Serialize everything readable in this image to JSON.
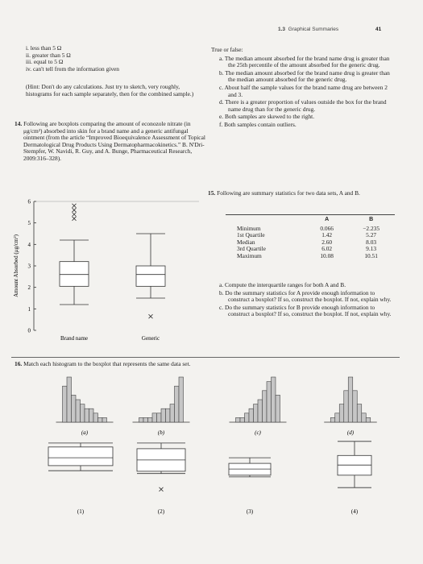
{
  "header": {
    "section_number": "1.3",
    "section_title": "Graphical Summaries",
    "page_number": "41"
  },
  "options": [
    "i. less than 5 Ω",
    "ii. greater than 5 Ω",
    "iii. equal to 5 Ω",
    "iv. can't tell from the information given"
  ],
  "hint": "(Hint: Don't do any calculations. Just try to sketch, very roughly, histograms for each sample separately, then for the combined sample.)",
  "problem14": {
    "number": "14.",
    "text": "Following are boxplots comparing the amount of econozole nitrate (in μg/cm²) absorbed into skin for a brand name and a generic antifungal ointment (from the article “Improved Bioequivalence Assessment of Topical Dermatological Drug Products Using Dermatopharmacokinetics.” B. N'Dri-Stempfer, W. Navidi, R. Guy, and A. Bunge, Pharmaceutical Research, 2009:316–328).",
    "figure": {
      "y_axis_label": "Amount Absorbed (μg/cm²)",
      "ylim": [
        0,
        6
      ],
      "yticks": [
        0,
        1,
        2,
        3,
        4,
        5,
        6
      ],
      "categories": [
        "Brand name",
        "Generic"
      ],
      "boxes": [
        {
          "min": 1.2,
          "q1": 2.05,
          "median": 2.6,
          "q3": 3.2,
          "max": 4.2,
          "outliers": [
            5.2,
            5.4,
            5.6,
            5.8
          ]
        },
        {
          "min": 1.5,
          "q1": 2.05,
          "median": 2.6,
          "q3": 3.0,
          "max": 4.5,
          "outliers": [
            0.65
          ]
        }
      ]
    }
  },
  "true_false": {
    "heading": "True or false:",
    "items": [
      {
        "letter": "a.",
        "text": "The median amount absorbed for the brand name drug is greater than the 25th percentile of the amount absorbed for the generic drug."
      },
      {
        "letter": "b.",
        "text": "The median amount absorbed for the brand name drug is greater than the median amount absorbed for the generic drug."
      },
      {
        "letter": "c.",
        "text": "About half the sample values for the brand name drug are between 2 and 3."
      },
      {
        "letter": "d.",
        "text": "There is a greater proportion of values outside the box for the brand name drug than for the generic drug."
      },
      {
        "letter": "e.",
        "text": "Both samples are skewed to the right."
      },
      {
        "letter": "f.",
        "text": "Both samples contain outliers."
      }
    ]
  },
  "problem15": {
    "number": "15.",
    "text": "Following are summary statistics for two data sets, A and B.",
    "table": {
      "columns": [
        "A",
        "B"
      ],
      "rows": [
        {
          "label": "Minimum",
          "values": [
            "0.066",
            "−2.235"
          ]
        },
        {
          "label": "1st Quartile",
          "values": [
            "1.42",
            "5.27"
          ]
        },
        {
          "label": "Median",
          "values": [
            "2.60",
            "8.03"
          ]
        },
        {
          "label": "3rd Quartile",
          "values": [
            "6.02",
            "9.13"
          ]
        },
        {
          "label": "Maximum",
          "values": [
            "10.08",
            "10.51"
          ]
        }
      ]
    },
    "questions": [
      {
        "letter": "a.",
        "text": "Compute the interquartile ranges for both A and B."
      },
      {
        "letter": "b.",
        "text": "Do the summary statistics for A provide enough information to construct a boxplot? If so, construct the boxplot. If not, explain why."
      },
      {
        "letter": "c.",
        "text": "Do the summary statistics for B provide enough information to construct a boxplot? If so, construct the boxplot. If not, explain why."
      }
    ]
  },
  "problem16": {
    "number": "16.",
    "text": "Match each histogram to the boxplot that represents the same data set.",
    "histogram_ylim": [
      0,
      10
    ],
    "histograms": [
      {
        "label": "(a)",
        "counts": [
          8,
          10,
          6,
          5,
          4,
          3,
          3,
          2,
          1,
          1
        ]
      },
      {
        "label": "(b)",
        "counts": [
          1,
          1,
          1,
          2,
          2,
          3,
          3,
          4,
          8,
          10
        ]
      },
      {
        "label": "(c)",
        "counts": [
          1,
          1,
          2,
          3,
          4,
          5,
          7,
          9,
          10,
          6
        ]
      },
      {
        "label": "(d)",
        "counts": [
          1,
          2,
          4,
          7,
          10,
          7,
          4,
          2,
          1
        ]
      }
    ],
    "boxplot_ylim": [
      0,
      10
    ],
    "boxplots": [
      {
        "label": "(1)",
        "min": 4.4,
        "q1": 5.3,
        "median": 6.7,
        "q3": 8.6,
        "max": 9.3,
        "outliers": []
      },
      {
        "label": "(2)",
        "min": 3.9,
        "q1": 4.3,
        "median": 6.3,
        "q3": 8.3,
        "max": 9.3,
        "outliers": [
          1.1
        ]
      },
      {
        "label": "(3)",
        "min": 3.3,
        "q1": 3.6,
        "median": 4.7,
        "q3": 5.7,
        "max": 6.7,
        "outliers": []
      },
      {
        "label": "(4)",
        "min": 1.4,
        "q1": 3.6,
        "median": 5.4,
        "q3": 7.1,
        "max": 9.6,
        "outliers": []
      }
    ]
  }
}
